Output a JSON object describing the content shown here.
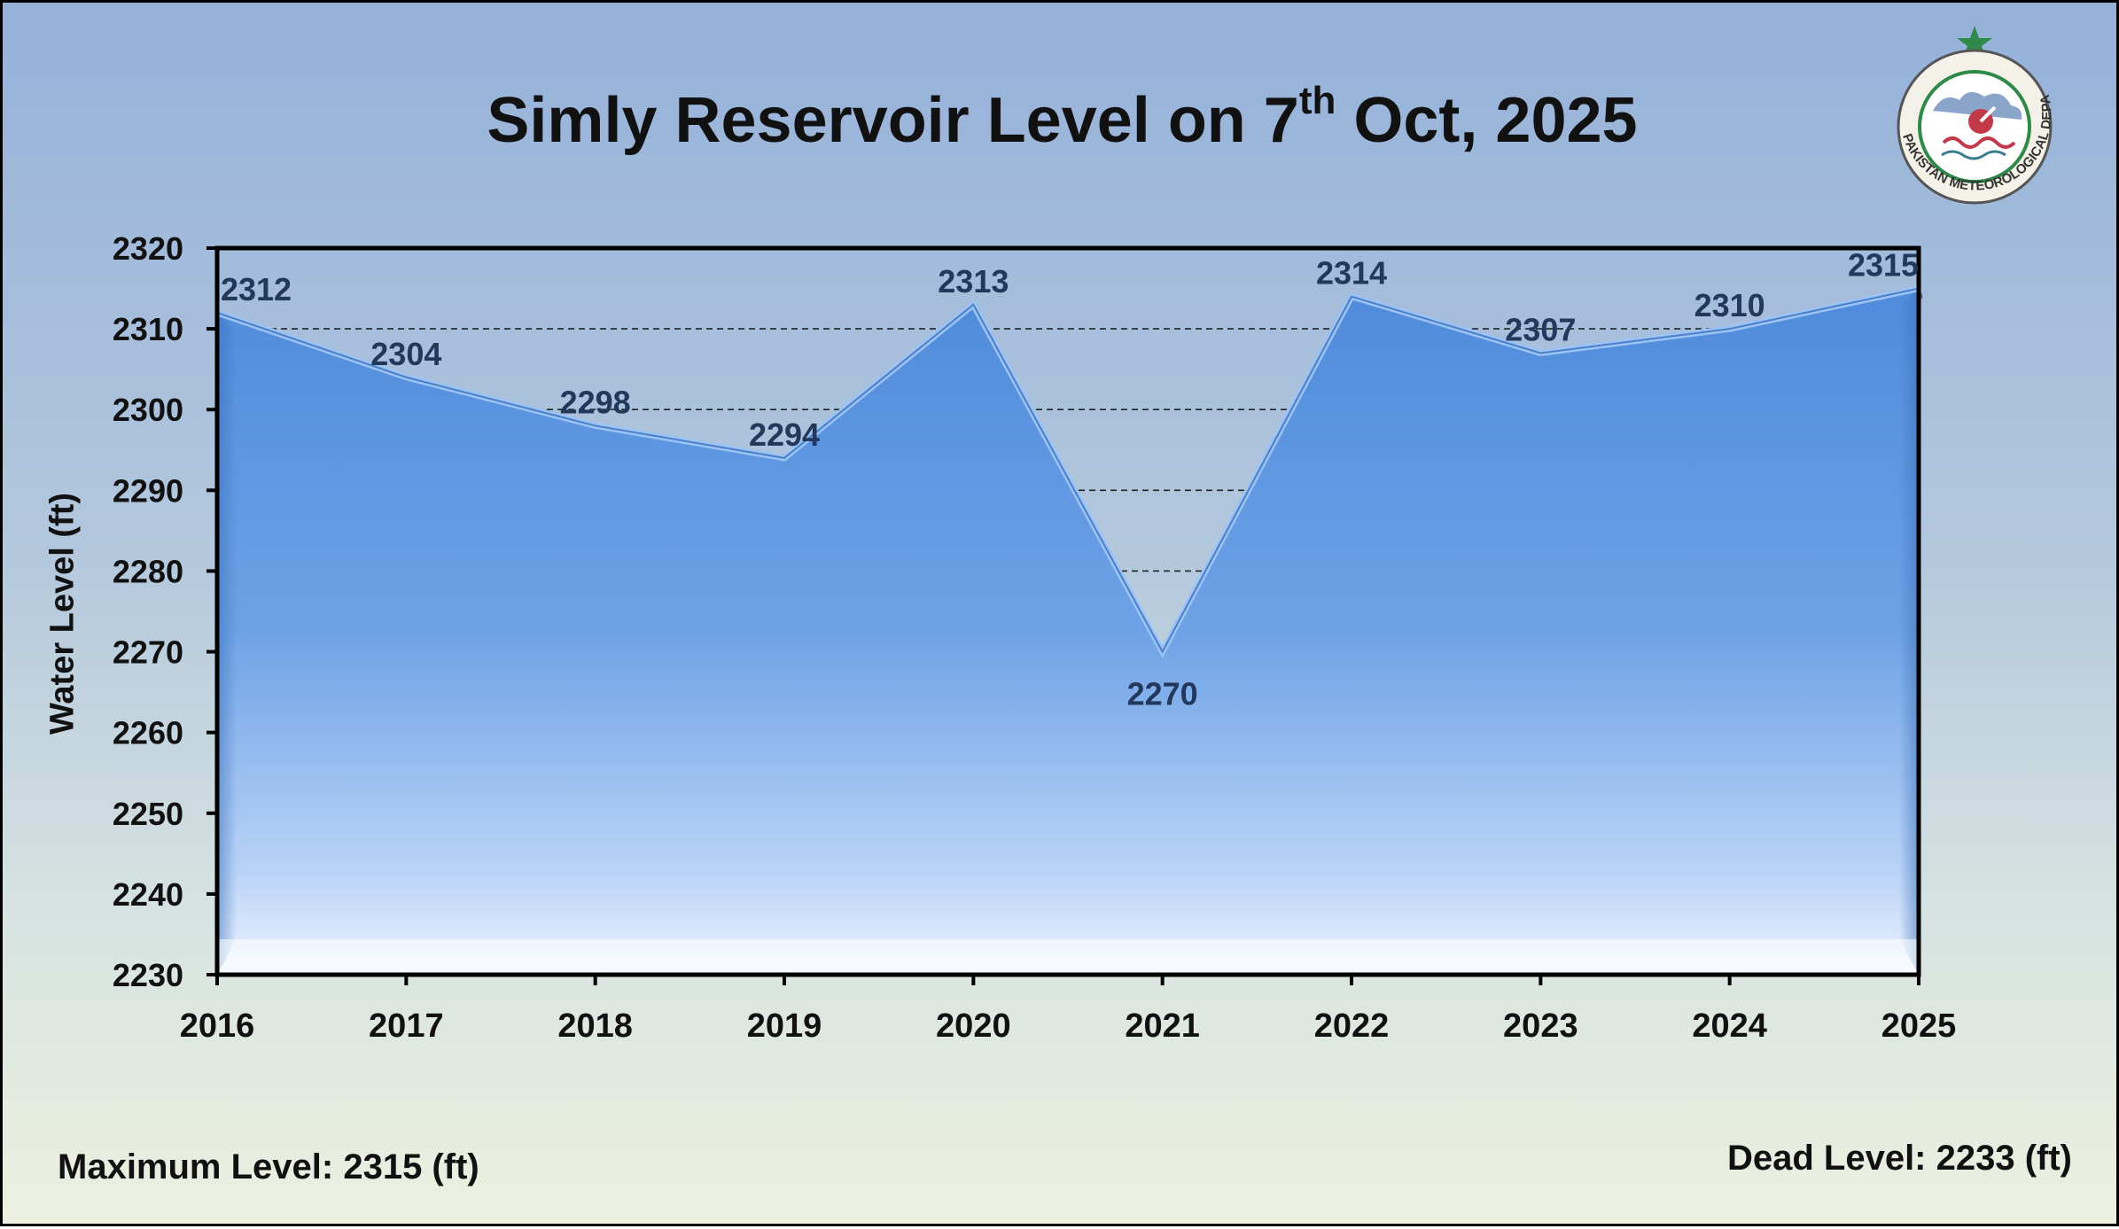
{
  "title_main": "Simly Reservoir Level on 7",
  "title_sup": "th",
  "title_end": " Oct, 2025",
  "footer": {
    "max_level": "Maximum Level: 2315 (ft)",
    "dead_level": "Dead Level: 2233 (ft)"
  },
  "logo": {
    "text": "PAKISTAN METEOROLOGICAL DEPARTMENT",
    "icon": "pmd-emblem-icon"
  },
  "colors": {
    "area_top": "#5b95dd",
    "area_bottom": "#dce9fb",
    "label": "#23395b",
    "border": "#000000"
  },
  "chart_data": {
    "type": "area",
    "categories": [
      "2016",
      "2017",
      "2018",
      "2019",
      "2020",
      "2021",
      "2022",
      "2023",
      "2024",
      "2025"
    ],
    "values": [
      2312,
      2304,
      2298,
      2294,
      2313,
      2270,
      2314,
      2307,
      2310,
      2315
    ],
    "data_labels": [
      "2312",
      "2304",
      "2298",
      "2294",
      "2313",
      "2270",
      "2314",
      "2307",
      "2310",
      "2315"
    ],
    "ylabel": "Water Level (ft)",
    "xlabel": "",
    "ylim": [
      2230,
      2320
    ],
    "yticks": [
      2230,
      2240,
      2250,
      2260,
      2270,
      2280,
      2290,
      2300,
      2310,
      2320
    ],
    "grid": "horizontal dashed",
    "legend": "none"
  }
}
